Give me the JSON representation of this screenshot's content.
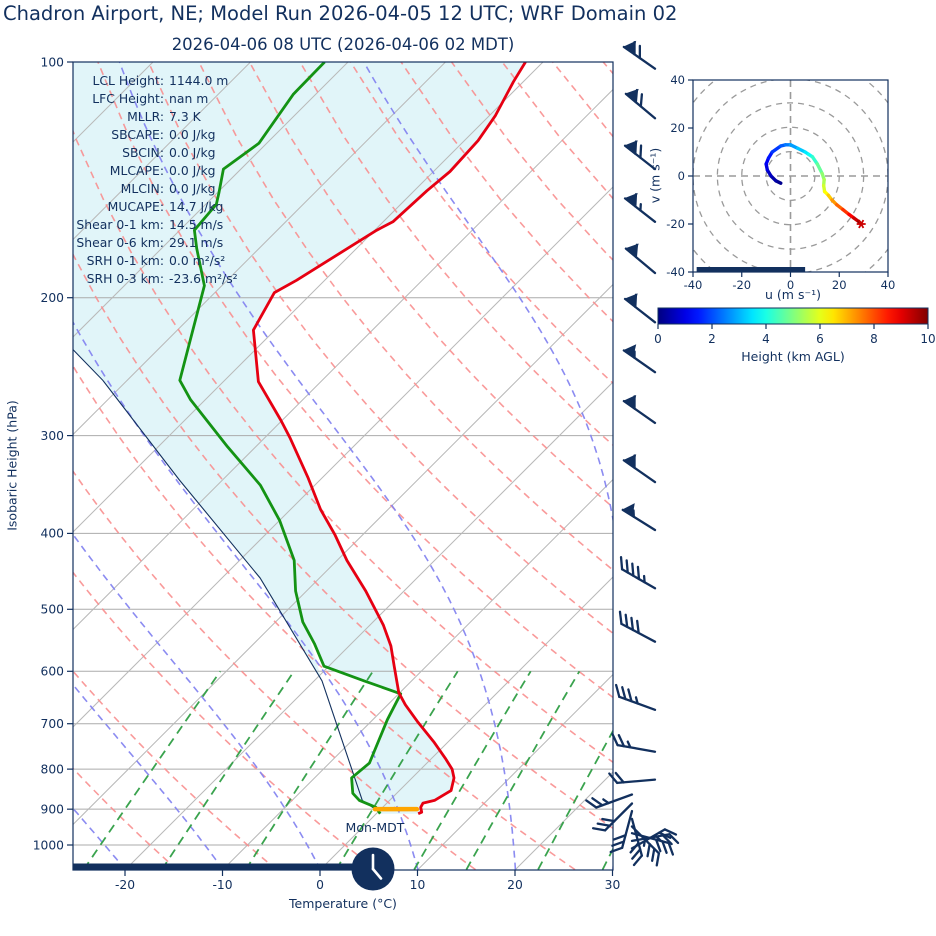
{
  "header": {
    "title": "Chadron Airport, NE; Model Run 2026-04-05 12 UTC; WRF Domain 02"
  },
  "colors": {
    "navy": "#12305e",
    "temperature": "#e60012",
    "dewpoint": "#149314",
    "parcel": "#12305e",
    "cape_fill": "#daf3f8",
    "dry_adiabat": "#f88f8f",
    "moist_adiabat": "#8585f0",
    "mixing_ratio": "#2f9e44",
    "isoline": "#b9b9b9",
    "isobar": "#ababab",
    "orange_marker": "#ffa500",
    "hodo_ring": "#9a9a9a",
    "end_marker": "#cc0000"
  },
  "chart_data": [
    {
      "type": "line",
      "id": "skewt",
      "title": "2026-04-06 08 UTC  (2026-04-06 02 MDT)",
      "xlabel": "Temperature (°C)",
      "ylabel": "Isobaric Height (hPa)",
      "xlim": [
        -25.3,
        30.3
      ],
      "plim": [
        100,
        1075
      ],
      "x_ticks": [
        -20,
        -10,
        0,
        10,
        20,
        30
      ],
      "p_ticks": [
        100,
        200,
        300,
        400,
        500,
        600,
        700,
        800,
        900,
        1000
      ],
      "grid": true,
      "skew_deg": 45,
      "isotherm_step": 10,
      "mixing_ratio_values_gkg": [
        0.5,
        1,
        2,
        4,
        7,
        10,
        16,
        24
      ],
      "stats": [
        [
          "LCL Height:",
          "1144.0 m"
        ],
        [
          "LFC Height:",
          "nan m"
        ],
        [
          "MLLR:",
          "7.3 K"
        ],
        [
          "SBCAPE:",
          "0.0 J/kg"
        ],
        [
          "SBCIN:",
          "0.0 J/kg"
        ],
        [
          "MLCAPE:",
          "0.0 J/kg"
        ],
        [
          "MLCIN:",
          "0.0 J/kg"
        ],
        [
          "MUCAPE:",
          "14.7 J/kg"
        ],
        [
          "Shear 0-1 km:",
          "14.5 m/s"
        ],
        [
          "Shear 0-6 km:",
          "29.1 m/s"
        ],
        [
          "SRH 0-1 km:",
          "0.0 m²/s²"
        ],
        [
          "SRH 0-3 km:",
          "-23.6 m²/s²"
        ]
      ],
      "clock_label": "Mon-MDT",
      "series": [
        {
          "name": "temperature",
          "points": [
            [
              -61.8,
              100
            ],
            [
              -61.0,
              106
            ],
            [
              -59.4,
              117
            ],
            [
              -58.6,
              126
            ],
            [
              -58.3,
              138
            ],
            [
              -58.7,
              146
            ],
            [
              -59.0,
              160
            ],
            [
              -59.8,
              164
            ],
            [
              -62.9,
              190
            ],
            [
              -63.9,
              197
            ],
            [
              -62.2,
              220
            ],
            [
              -56.4,
              256
            ],
            [
              -50.1,
              287
            ],
            [
              -47.4,
              302
            ],
            [
              -41.4,
              340
            ],
            [
              -36.9,
              373
            ],
            [
              -32.8,
              402
            ],
            [
              -29.0,
              433
            ],
            [
              -23.9,
              474
            ],
            [
              -18.6,
              524
            ],
            [
              -15.7,
              557
            ],
            [
              -13.3,
              591
            ],
            [
              -10.1,
              639
            ],
            [
              -8.2,
              662
            ],
            [
              -5.1,
              697
            ],
            [
              -1.5,
              738
            ],
            [
              1.4,
              775
            ],
            [
              3.2,
              800
            ],
            [
              4.3,
              821
            ],
            [
              5.3,
              852
            ],
            [
              5.1,
              859
            ],
            [
              4.6,
              877
            ],
            [
              3.7,
              884
            ],
            [
              3.9,
              895
            ],
            [
              4.5,
              908
            ],
            [
              4.3,
              912
            ]
          ]
        },
        {
          "name": "dewpoint",
          "points": [
            [
              -82.4,
              100
            ],
            [
              -82.3,
              110
            ],
            [
              -80.8,
              127
            ],
            [
              -81.8,
              137
            ],
            [
              -79.8,
              147
            ],
            [
              -78.9,
              152
            ],
            [
              -78.5,
              164
            ],
            [
              -76.4,
              173
            ],
            [
              -71.8,
              193
            ],
            [
              -64.6,
              255
            ],
            [
              -61.5,
              270
            ],
            [
              -52.9,
              310
            ],
            [
              -45.6,
              347
            ],
            [
              -40.0,
              385
            ],
            [
              -34.4,
              433
            ],
            [
              -31.1,
              474
            ],
            [
              -27.2,
              519
            ],
            [
              -23.8,
              553
            ],
            [
              -20.5,
              591
            ],
            [
              -14.9,
              617
            ],
            [
              -9.8,
              641
            ],
            [
              -8.5,
              692
            ],
            [
              -5.9,
              786
            ],
            [
              -6.2,
              821
            ],
            [
              -4.5,
              859
            ],
            [
              -3.1,
              877
            ],
            [
              -0.7,
              895
            ],
            [
              0.4,
              912
            ]
          ]
        },
        {
          "name": "parcel",
          "points": [
            [
              -78.7,
              233
            ],
            [
              -72.5,
              255
            ],
            [
              -54.4,
              342
            ],
            [
              -36.1,
              456
            ],
            [
              -19.2,
              617
            ],
            [
              -2.8,
              877
            ],
            [
              0.2,
              908
            ]
          ]
        }
      ],
      "surface_marker": {
        "p": 900,
        "t_start": -0.6,
        "t_end": 3.7
      },
      "surface_bar": {
        "t_end": 3.6
      },
      "barbs": [
        {
          "p": 102,
          "dir": -55,
          "pen": 1,
          "full": 2,
          "half": 0
        },
        {
          "p": 118,
          "dir": -50,
          "pen": 1,
          "full": 2,
          "half": 0
        },
        {
          "p": 137,
          "dir": -52,
          "pen": 1,
          "full": 2,
          "half": 0
        },
        {
          "p": 160,
          "dir": -52,
          "pen": 1,
          "full": 1,
          "half": 1
        },
        {
          "p": 186,
          "dir": -50,
          "pen": 1,
          "full": 1,
          "half": 0
        },
        {
          "p": 215,
          "dir": -52,
          "pen": 1,
          "full": 1,
          "half": 0
        },
        {
          "p": 249,
          "dir": -55,
          "pen": 1,
          "full": 0,
          "half": 1
        },
        {
          "p": 289,
          "dir": -55,
          "pen": 1,
          "full": 1,
          "half": 0
        },
        {
          "p": 344,
          "dir": -55,
          "pen": 1,
          "full": 1,
          "half": 0
        },
        {
          "p": 396,
          "dir": -58,
          "pen": 1,
          "full": 0,
          "half": 1
        },
        {
          "p": 470,
          "dir": -60,
          "pen": 0,
          "full": 4,
          "half": 1
        },
        {
          "p": 550,
          "dir": -62,
          "pen": 0,
          "full": 4,
          "half": 0
        },
        {
          "p": 672,
          "dir": -70,
          "pen": 0,
          "full": 3,
          "half": 1
        },
        {
          "p": 760,
          "dir": -80,
          "pen": 0,
          "full": 2,
          "half": 1
        },
        {
          "p": 825,
          "dir": -95,
          "pen": 0,
          "full": 2,
          "half": 0
        },
        {
          "p": 862,
          "dir": -110,
          "pen": 0,
          "full": 2,
          "half": 1
        },
        {
          "p": 885,
          "dir": -135,
          "pen": 0,
          "full": 3,
          "half": 0
        },
        {
          "p": 905,
          "dir": -165,
          "pen": 0,
          "full": 3,
          "half": 0
        },
        {
          "p": 926,
          "dir": 165,
          "pen": 0,
          "full": 3,
          "half": 0
        },
        {
          "p": 947,
          "dir": 135,
          "pen": 0,
          "full": 3,
          "half": 1
        },
        {
          "p": 966,
          "dir": 105,
          "pen": 0,
          "full": 3,
          "half": 0
        },
        {
          "p": 988,
          "dir": 80,
          "pen": 0,
          "full": 2,
          "half": 1
        },
        {
          "p": 1010,
          "dir": 60,
          "pen": 0,
          "full": 2,
          "half": 0
        }
      ]
    },
    {
      "type": "line",
      "id": "hodograph",
      "xlabel": "u (m s⁻¹)",
      "ylabel": "v (m s⁻¹)",
      "xlim": [
        -40,
        40
      ],
      "ylim": [
        -40,
        40
      ],
      "u_ticks": [
        -40,
        -20,
        0,
        20,
        40
      ],
      "v_ticks": [
        -40,
        -20,
        0,
        20,
        40
      ],
      "ring_radii": [
        10,
        20,
        30,
        40,
        50
      ],
      "trace": {
        "h_km": [
          0,
          0.3,
          0.5,
          0.8,
          1,
          1.3,
          1.6,
          2,
          2.3,
          2.6,
          3,
          3.4,
          3.7,
          4,
          4.5,
          5,
          5.3,
          5.6,
          6,
          6.5,
          7,
          7.5,
          8,
          8.5,
          9,
          9.5,
          10
        ],
        "u": [
          -4,
          -6,
          -8,
          -9.5,
          -10,
          -9,
          -7.5,
          -4,
          -2,
          0,
          3,
          6,
          7.5,
          9,
          11,
          13,
          13.8,
          13.6,
          14,
          15.5,
          17,
          19,
          21.5,
          24,
          26,
          28,
          29
        ],
        "v": [
          -3,
          -2,
          0,
          2.5,
          5,
          7.5,
          10,
          12.5,
          13,
          13,
          11.5,
          10,
          9,
          8,
          5,
          1,
          -1.5,
          -4,
          -6.5,
          -8,
          -10,
          -12,
          -14,
          -16,
          -17.5,
          -19,
          -20
        ]
      },
      "end_marker": {
        "u": 29,
        "v": -20
      },
      "surface_bar": {
        "u_start": -38.5,
        "u_end": 6
      },
      "colorbar": {
        "label": "Height (km AGL)",
        "ticks": [
          0,
          2,
          4,
          6,
          8,
          10
        ],
        "min": 0,
        "max": 10,
        "cmap": "jet"
      }
    }
  ]
}
